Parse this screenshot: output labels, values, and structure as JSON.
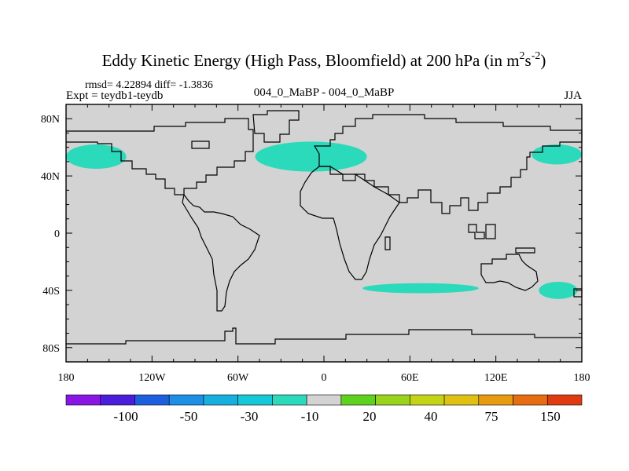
{
  "chart_data": {
    "type": "map",
    "title": "Eddy Kinetic Energy (High Pass, Bloomfield) at 200 hPa (in m",
    "title_units": {
      "base_m": "m",
      "exp_m": "2",
      "base_s": "s",
      "exp_s": "-2",
      "close": ")"
    },
    "stats_line": "rmsd= 4.22894 diff= -1.3836",
    "left_label": "Expt = teydb1-teydb",
    "center_label": "004_0_MaBP - 004_0_MaBP",
    "season": "JJA",
    "lon_range": [
      -180,
      180
    ],
    "lat_range": [
      -90,
      90
    ],
    "x_ticks": [
      {
        "value": -180,
        "label": "180"
      },
      {
        "value": -120,
        "label": "120W"
      },
      {
        "value": -60,
        "label": "60W"
      },
      {
        "value": 0,
        "label": "0"
      },
      {
        "value": 60,
        "label": "60E"
      },
      {
        "value": 120,
        "label": "120E"
      },
      {
        "value": 180,
        "label": "180"
      }
    ],
    "y_ticks": [
      {
        "value": 80,
        "label": "80N"
      },
      {
        "value": 40,
        "label": "40N"
      },
      {
        "value": 0,
        "label": "0"
      },
      {
        "value": -40,
        "label": "40S"
      },
      {
        "value": -80,
        "label": "80S"
      }
    ],
    "background_color": "#d3d3d3",
    "highlight_color": "#2bd9bb",
    "regions": [
      {
        "name": "north-pacific-anomaly",
        "bin": "-10",
        "lon": [
          -180,
          -138
        ],
        "lat": [
          45,
          62
        ]
      },
      {
        "name": "north-atlantic-anomaly",
        "bin": "-10",
        "lon": [
          -48,
          30
        ],
        "lat": [
          43,
          64
        ]
      },
      {
        "name": "west-pacific-anomaly",
        "bin": "-10",
        "lon": [
          145,
          180
        ],
        "lat": [
          48,
          62
        ]
      },
      {
        "name": "indian-ocean-anomaly",
        "bin": "-10",
        "lon": [
          27,
          108
        ],
        "lat": [
          -42,
          -35
        ]
      },
      {
        "name": "southwest-pacific-anomaly",
        "bin": "-10",
        "lon": [
          150,
          177
        ],
        "lat": [
          -46,
          -34
        ]
      }
    ],
    "colorbar": {
      "colors": [
        "#8a16e6",
        "#4c1cdc",
        "#1e5ee0",
        "#1b90e6",
        "#16b0e0",
        "#15c8d8",
        "#2bd9bb",
        "#d3d3d3",
        "#5ed21c",
        "#99d31a",
        "#c4d414",
        "#e0c010",
        "#e89a10",
        "#e86c10",
        "#e03a10"
      ],
      "labels": [
        "-100",
        "-50",
        "-30",
        "-10",
        "20",
        "40",
        "75",
        "150"
      ]
    }
  }
}
